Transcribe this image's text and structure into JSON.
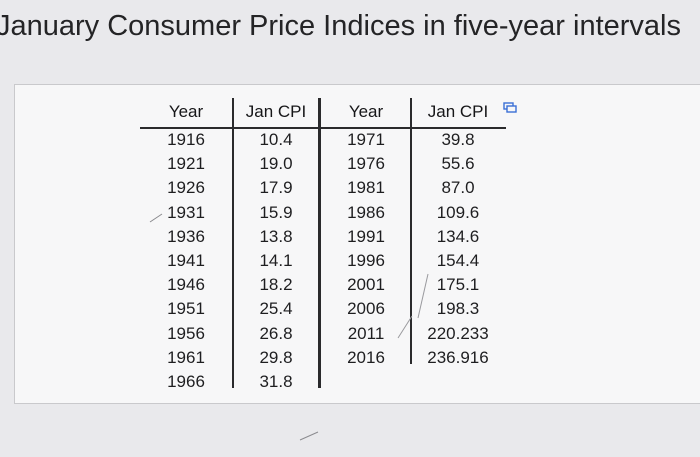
{
  "page": {
    "title": "January Consumer Price Indices in five-year intervals"
  },
  "table": {
    "headers": {
      "year_a": "Year",
      "cpi_a": "Jan CPI",
      "year_b": "Year",
      "cpi_b": "Jan CPI"
    },
    "left_years": [
      "1916",
      "1921",
      "1926",
      "1931",
      "1936",
      "1941",
      "1946",
      "1951",
      "1956",
      "1961",
      "1966"
    ],
    "left_cpi": [
      "10.4",
      "19.0",
      "17.9",
      "15.9",
      "13.8",
      "14.1",
      "18.2",
      "25.4",
      "26.8",
      "29.8",
      "31.8"
    ],
    "right_years": [
      "1971",
      "1976",
      "1981",
      "1986",
      "1991",
      "1996",
      "2001",
      "2006",
      "2011",
      "2016"
    ],
    "right_cpi": [
      "39.8",
      "55.6",
      "87.0",
      "109.6",
      "134.6",
      "154.4",
      "175.1",
      "198.3",
      "220.233",
      "236.916"
    ]
  },
  "icons": {
    "copy": "copy-icon"
  },
  "colors": {
    "background": "#e9e9ec",
    "panel": "#f7f7f8",
    "rule": "#2a2a2c",
    "icon_accent": "#3b6fd6"
  }
}
